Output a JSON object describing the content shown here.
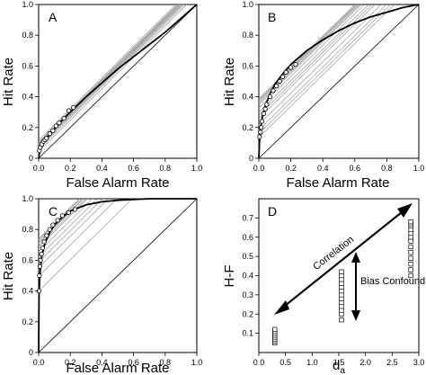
{
  "chart_data": [
    {
      "panel": "A",
      "type": "line",
      "xlabel": "False Alarm Rate",
      "ylabel": "Hit Rate",
      "xlim": [
        0,
        1
      ],
      "ylim": [
        0,
        1
      ],
      "xticks": [
        "0.0",
        "0.2",
        "0.4",
        "0.6",
        "0.8",
        "1.0"
      ],
      "yticks": [
        "0",
        "0.2",
        "0.4",
        "0.6",
        "0.8",
        "1.0"
      ],
      "roc_curve": {
        "x": [
          0,
          0.01,
          0.03,
          0.06,
          0.1,
          0.15,
          0.2,
          0.3,
          0.4,
          0.5,
          0.6,
          0.7,
          0.8,
          0.9,
          1.0
        ],
        "y": [
          0,
          0.06,
          0.1,
          0.14,
          0.19,
          0.25,
          0.3,
          0.4,
          0.49,
          0.58,
          0.66,
          0.74,
          0.82,
          0.91,
          1.0
        ]
      },
      "points": {
        "x": [
          0.005,
          0.01,
          0.02,
          0.03,
          0.04,
          0.05,
          0.07,
          0.09,
          0.11,
          0.13,
          0.16,
          0.19,
          0.22
        ],
        "y": [
          0.05,
          0.07,
          0.09,
          0.11,
          0.12,
          0.13,
          0.16,
          0.18,
          0.21,
          0.23,
          0.26,
          0.31,
          0.33
        ]
      },
      "chance_line": true
    },
    {
      "panel": "B",
      "type": "line",
      "xlabel": "False Alarm Rate",
      "ylabel": "Hit Rate",
      "xlim": [
        0,
        1
      ],
      "ylim": [
        0,
        1
      ],
      "xticks": [
        "0.0",
        "0.2",
        "0.4",
        "0.6",
        "0.8",
        "1.0"
      ],
      "yticks": [
        "0",
        "0.2",
        "0.4",
        "0.6",
        "0.8",
        "1.0"
      ],
      "roc_curve": {
        "x": [
          0,
          0.005,
          0.01,
          0.02,
          0.04,
          0.07,
          0.1,
          0.15,
          0.2,
          0.3,
          0.4,
          0.5,
          0.6,
          0.7,
          0.8,
          0.9,
          1.0
        ],
        "y": [
          0,
          0.13,
          0.19,
          0.26,
          0.34,
          0.42,
          0.48,
          0.55,
          0.61,
          0.7,
          0.77,
          0.83,
          0.88,
          0.92,
          0.95,
          0.98,
          1.0
        ]
      },
      "points": {
        "x": [
          0.005,
          0.01,
          0.015,
          0.02,
          0.03,
          0.04,
          0.05,
          0.07,
          0.09,
          0.11,
          0.13,
          0.15,
          0.17,
          0.2,
          0.23
        ],
        "y": [
          0.14,
          0.17,
          0.2,
          0.24,
          0.29,
          0.32,
          0.35,
          0.4,
          0.44,
          0.47,
          0.5,
          0.53,
          0.56,
          0.59,
          0.61
        ]
      },
      "chance_line": true
    },
    {
      "panel": "C",
      "type": "line",
      "xlabel": "False Alarm Rate",
      "ylabel": "Hit Rate",
      "xlim": [
        0,
        1
      ],
      "ylim": [
        0,
        1
      ],
      "xticks": [
        "0.0",
        "0.2",
        "0.4",
        "0.6",
        "0.8",
        "1.0"
      ],
      "yticks": [
        "0",
        "0.2",
        "0.4",
        "0.6",
        "0.8",
        "1.0"
      ],
      "roc_curve": {
        "x": [
          0,
          0.002,
          0.005,
          0.01,
          0.02,
          0.04,
          0.07,
          0.1,
          0.15,
          0.2,
          0.3,
          0.4,
          0.5,
          0.6,
          0.7,
          0.8,
          0.9,
          1.0
        ],
        "y": [
          0,
          0.35,
          0.45,
          0.54,
          0.63,
          0.71,
          0.78,
          0.83,
          0.88,
          0.92,
          0.96,
          0.98,
          0.99,
          0.995,
          1.0,
          1.0,
          1.0,
          1.0
        ]
      },
      "points": {
        "x": [
          0.002,
          0.005,
          0.008,
          0.012,
          0.018,
          0.025,
          0.035,
          0.05,
          0.07,
          0.09,
          0.12,
          0.15,
          0.19,
          0.23
        ],
        "y": [
          0.4,
          0.5,
          0.56,
          0.6,
          0.64,
          0.68,
          0.72,
          0.76,
          0.8,
          0.83,
          0.86,
          0.89,
          0.91,
          0.93
        ]
      },
      "chance_line": true
    },
    {
      "panel": "D",
      "type": "scatter",
      "xlabel": "d",
      "xlabel_sub": "a",
      "ylabel": "H-F",
      "xlim": [
        0,
        3
      ],
      "ylim": [
        0,
        0.8
      ],
      "xticks": [
        "0.0",
        "0.5",
        "1.0",
        "1.5",
        "2.0",
        "2.5",
        "3.0"
      ],
      "yticks": [
        "0.1",
        "0.2",
        "0.3",
        "0.4",
        "0.5",
        "0.6",
        "0.7"
      ],
      "series": [
        {
          "x": 0.3,
          "values": [
            0.05,
            0.06,
            0.07,
            0.08,
            0.09,
            0.1,
            0.11,
            0.12
          ]
        },
        {
          "x": 1.55,
          "values": [
            0.17,
            0.2,
            0.22,
            0.24,
            0.26,
            0.28,
            0.3,
            0.32,
            0.34,
            0.36,
            0.38,
            0.4,
            0.42
          ]
        },
        {
          "x": 2.85,
          "values": [
            0.4,
            0.43,
            0.46,
            0.49,
            0.52,
            0.55,
            0.58,
            0.6,
            0.62,
            0.64,
            0.66,
            0.67,
            0.68
          ]
        }
      ],
      "annotations": {
        "correlation": "Correlation",
        "bias": "Bias Confound"
      }
    }
  ],
  "colors": {
    "curve": "#000000",
    "fan": "#9a9a9a",
    "points": "#000000"
  }
}
